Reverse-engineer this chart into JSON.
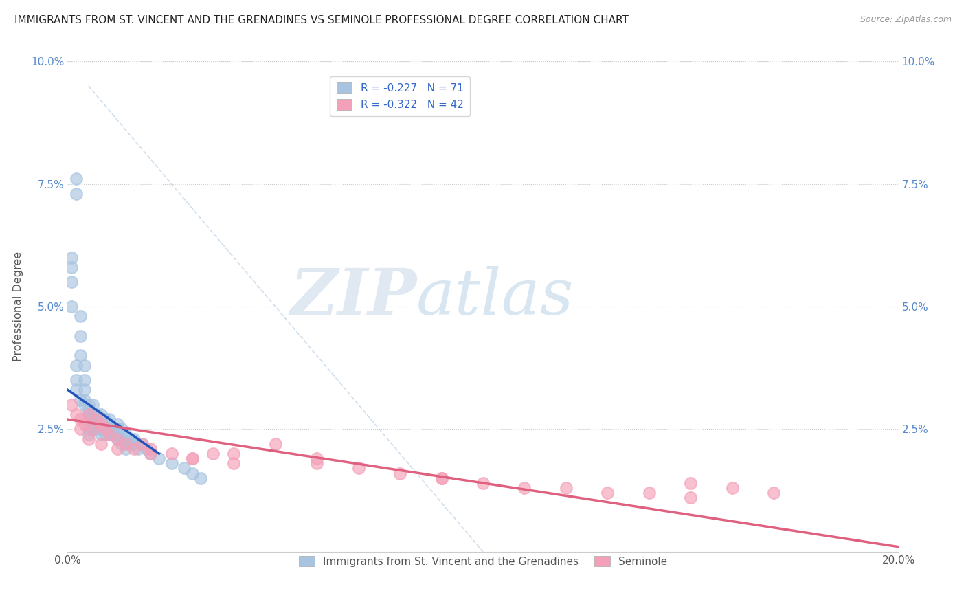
{
  "title": "IMMIGRANTS FROM ST. VINCENT AND THE GRENADINES VS SEMINOLE PROFESSIONAL DEGREE CORRELATION CHART",
  "source": "Source: ZipAtlas.com",
  "xlabel": "",
  "ylabel": "Professional Degree",
  "legend_label_blue": "Immigrants from St. Vincent and the Grenadines",
  "legend_label_pink": "Seminole",
  "r_blue": -0.227,
  "n_blue": 71,
  "r_pink": -0.322,
  "n_pink": 42,
  "color_blue": "#a8c4e0",
  "color_pink": "#f4a0b8",
  "trend_blue": "#2255bb",
  "trend_pink": "#e06080",
  "xlim": [
    0.0,
    0.2
  ],
  "ylim": [
    0.0,
    0.1
  ],
  "xticks": [
    0.0,
    0.05,
    0.1,
    0.15,
    0.2
  ],
  "xtick_labels": [
    "0.0%",
    "",
    "",
    "",
    "20.0%"
  ],
  "yticks": [
    0.0,
    0.025,
    0.05,
    0.075,
    0.1
  ],
  "ytick_labels_left": [
    "",
    "2.5%",
    "5.0%",
    "7.5%",
    "10.0%"
  ],
  "ytick_labels_right": [
    "",
    "2.5%",
    "5.0%",
    "7.5%",
    "10.0%"
  ],
  "background_color": "#ffffff",
  "grid_color": "#cccccc",
  "watermark_zip": "ZIP",
  "watermark_atlas": "atlas",
  "blue_x": [
    0.001,
    0.001,
    0.002,
    0.002,
    0.003,
    0.003,
    0.003,
    0.004,
    0.004,
    0.004,
    0.004,
    0.005,
    0.005,
    0.005,
    0.005,
    0.005,
    0.006,
    0.006,
    0.006,
    0.006,
    0.007,
    0.007,
    0.007,
    0.008,
    0.008,
    0.008,
    0.008,
    0.009,
    0.009,
    0.009,
    0.01,
    0.01,
    0.01,
    0.011,
    0.011,
    0.012,
    0.012,
    0.012,
    0.013,
    0.013,
    0.014,
    0.015,
    0.015,
    0.016,
    0.016,
    0.017,
    0.018,
    0.019,
    0.02,
    0.022,
    0.025,
    0.028,
    0.03,
    0.032,
    0.002,
    0.002,
    0.003,
    0.004,
    0.005,
    0.006,
    0.007,
    0.008,
    0.009,
    0.01,
    0.011,
    0.012,
    0.013,
    0.014,
    0.001,
    0.001,
    0.002
  ],
  "blue_y": [
    0.055,
    0.05,
    0.076,
    0.073,
    0.048,
    0.044,
    0.04,
    0.038,
    0.035,
    0.033,
    0.031,
    0.03,
    0.028,
    0.027,
    0.025,
    0.024,
    0.03,
    0.028,
    0.026,
    0.025,
    0.028,
    0.026,
    0.025,
    0.028,
    0.026,
    0.025,
    0.024,
    0.027,
    0.025,
    0.024,
    0.027,
    0.026,
    0.024,
    0.025,
    0.024,
    0.026,
    0.025,
    0.024,
    0.025,
    0.023,
    0.024,
    0.023,
    0.022,
    0.023,
    0.022,
    0.021,
    0.022,
    0.021,
    0.02,
    0.019,
    0.018,
    0.017,
    0.016,
    0.015,
    0.035,
    0.033,
    0.031,
    0.03,
    0.029,
    0.028,
    0.027,
    0.026,
    0.025,
    0.025,
    0.024,
    0.023,
    0.022,
    0.021,
    0.06,
    0.058,
    0.038
  ],
  "pink_x": [
    0.001,
    0.002,
    0.003,
    0.004,
    0.005,
    0.006,
    0.007,
    0.008,
    0.009,
    0.01,
    0.012,
    0.014,
    0.016,
    0.018,
    0.02,
    0.025,
    0.03,
    0.035,
    0.04,
    0.05,
    0.06,
    0.07,
    0.08,
    0.09,
    0.1,
    0.11,
    0.12,
    0.13,
    0.14,
    0.15,
    0.16,
    0.17,
    0.003,
    0.005,
    0.008,
    0.012,
    0.02,
    0.03,
    0.04,
    0.06,
    0.09,
    0.15
  ],
  "pink_y": [
    0.03,
    0.028,
    0.027,
    0.026,
    0.028,
    0.025,
    0.027,
    0.026,
    0.025,
    0.024,
    0.023,
    0.022,
    0.021,
    0.022,
    0.021,
    0.02,
    0.019,
    0.02,
    0.018,
    0.022,
    0.018,
    0.017,
    0.016,
    0.015,
    0.014,
    0.013,
    0.013,
    0.012,
    0.012,
    0.011,
    0.013,
    0.012,
    0.025,
    0.023,
    0.022,
    0.021,
    0.02,
    0.019,
    0.02,
    0.019,
    0.015,
    0.014
  ],
  "blue_trend_x": [
    0.0,
    0.022
  ],
  "blue_trend_y": [
    0.033,
    0.02
  ],
  "pink_trend_x": [
    0.0,
    0.2
  ],
  "pink_trend_y": [
    0.027,
    0.001
  ]
}
